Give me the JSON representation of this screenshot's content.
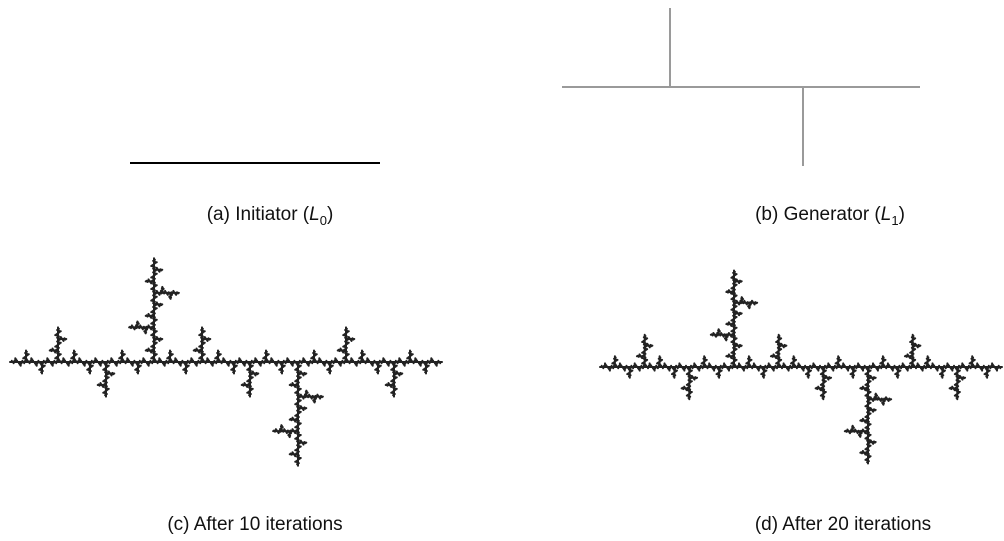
{
  "panels": [
    {
      "caption": {
        "text": "(a) Initiator (",
        "symbol": "L",
        "subscript": "0",
        "close": ")"
      }
    },
    {
      "caption": {
        "text": "(b) Generator (",
        "symbol": "L",
        "subscript": "1",
        "close": ")"
      }
    },
    {
      "caption": {
        "text": "(c) After 10 iterations"
      }
    },
    {
      "caption": {
        "text": "(d) After 20 iterations"
      }
    }
  ]
}
